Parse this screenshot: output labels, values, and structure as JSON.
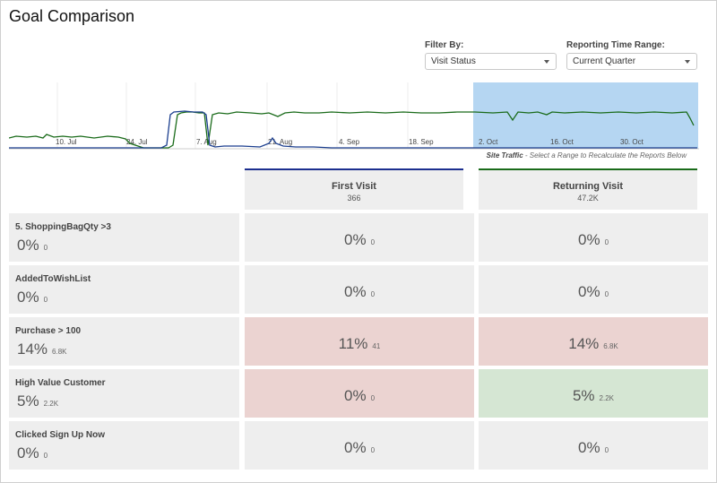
{
  "page": {
    "title": "Goal Comparison"
  },
  "filters": {
    "filter_by": {
      "label": "Filter By:",
      "value": "Visit Status"
    },
    "time_range": {
      "label": "Reporting Time Range:",
      "value": "Current Quarter"
    }
  },
  "timeline": {
    "caption_bold": "Site Traffic",
    "caption_rest": " - Select a Range to Recalculate the Reports Below",
    "tick_labels": [
      "10. Jul",
      "24. Jul",
      "7. Aug",
      "21. Aug",
      "4. Sep",
      "18. Sep",
      "2. Oct",
      "16. Oct",
      "30. Oct"
    ],
    "selection_color": "#b5d6f2",
    "series": [
      {
        "color": "#1a6b1a"
      },
      {
        "color": "#1c3f8f"
      }
    ]
  },
  "columns": [
    {
      "name": "First Visit",
      "count": "366",
      "accent": "#1c2f8f"
    },
    {
      "name": "Returning Visit",
      "count": "47.2K",
      "accent": "#1a6b1a"
    }
  ],
  "rows": [
    {
      "goal": "5. ShoppingBagQty >3",
      "pct": "0%",
      "count": "0",
      "cells": [
        {
          "pct": "0%",
          "count": "0",
          "status": "neutral"
        },
        {
          "pct": "0%",
          "count": "0",
          "status": "neutral"
        }
      ]
    },
    {
      "goal": "AddedToWishList",
      "pct": "0%",
      "count": "0",
      "cells": [
        {
          "pct": "0%",
          "count": "0",
          "status": "neutral"
        },
        {
          "pct": "0%",
          "count": "0",
          "status": "neutral"
        }
      ]
    },
    {
      "goal": "Purchase > 100",
      "pct": "14%",
      "count": "6.8K",
      "cells": [
        {
          "pct": "11%",
          "count": "41",
          "status": "red"
        },
        {
          "pct": "14%",
          "count": "6.8K",
          "status": "red"
        }
      ]
    },
    {
      "goal": "High Value Customer",
      "pct": "5%",
      "count": "2.2K",
      "cells": [
        {
          "pct": "0%",
          "count": "0",
          "status": "red"
        },
        {
          "pct": "5%",
          "count": "2.2K",
          "status": "green"
        }
      ]
    },
    {
      "goal": "Clicked Sign Up Now",
      "pct": "0%",
      "count": "0",
      "cells": [
        {
          "pct": "0%",
          "count": "0",
          "status": "neutral"
        },
        {
          "pct": "0%",
          "count": "0",
          "status": "neutral"
        }
      ]
    }
  ]
}
